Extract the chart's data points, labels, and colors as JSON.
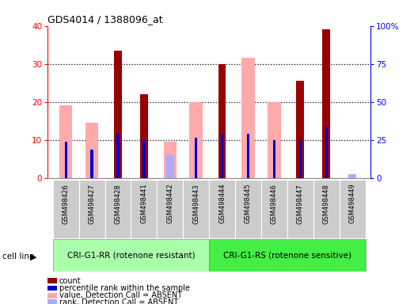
{
  "title": "GDS4014 / 1388096_at",
  "samples": [
    "GSM498426",
    "GSM498427",
    "GSM498428",
    "GSM498441",
    "GSM498442",
    "GSM498443",
    "GSM498444",
    "GSM498445",
    "GSM498446",
    "GSM498447",
    "GSM498448",
    "GSM498449"
  ],
  "group1_label": "CRI-G1-RR (rotenone resistant)",
  "group2_label": "CRI-G1-RS (rotenone sensitive)",
  "ylim_left": [
    0,
    40
  ],
  "ylim_right": [
    0,
    100
  ],
  "yticks_left": [
    0,
    10,
    20,
    30,
    40
  ],
  "yticks_right": [
    0,
    25,
    50,
    75,
    100
  ],
  "yticklabels_right": [
    "0",
    "25",
    "50",
    "75",
    "100%"
  ],
  "dark_red_bars": [
    0,
    0,
    33.5,
    22.0,
    0,
    0,
    30.0,
    0,
    0,
    25.5,
    39.0,
    0
  ],
  "pink_bars": [
    19.0,
    14.5,
    0,
    0,
    9.5,
    20.0,
    0,
    31.5,
    20.0,
    0,
    0,
    0
  ],
  "blue_bars": [
    9.5,
    7.5,
    11.5,
    10.0,
    0,
    10.5,
    11.5,
    11.5,
    10.0,
    10.0,
    13.5,
    0
  ],
  "light_blue_bars": [
    0,
    0,
    0,
    0,
    6.0,
    0,
    0,
    0,
    0,
    0,
    0,
    1.0
  ],
  "dark_red_color": "#990000",
  "pink_color": "#ffaaaa",
  "blue_color": "#0000cc",
  "light_blue_color": "#aaaaff",
  "group1_bg": "#aaffaa",
  "group2_bg": "#44ee44",
  "sample_bg": "#cccccc",
  "legend_items": [
    {
      "label": "count",
      "color": "#990000"
    },
    {
      "label": "percentile rank within the sample",
      "color": "#0000cc"
    },
    {
      "label": "value, Detection Call = ABSENT",
      "color": "#ffaaaa"
    },
    {
      "label": "rank, Detection Call = ABSENT",
      "color": "#aaaaff"
    }
  ]
}
